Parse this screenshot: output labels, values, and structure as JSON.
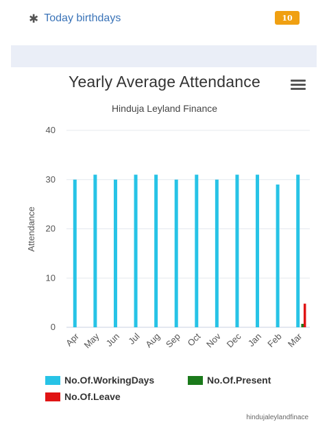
{
  "birthdays": {
    "icon": "asterisk-icon",
    "label": "Today birthdays",
    "count": "10",
    "badge_color": "#f0a012"
  },
  "chart": {
    "title": "Yearly Average Attendance",
    "subtitle": "Hinduja Leyland Finance",
    "menu_icon": "hamburger-menu-icon",
    "credit": "hindujaleylandfinace"
  },
  "chart_data": {
    "type": "bar",
    "title": "Yearly Average Attendance",
    "subtitle": "Hinduja Leyland Finance",
    "xlabel": "",
    "ylabel": "Attendance",
    "ylim": [
      0,
      40
    ],
    "yticks": [
      0,
      10,
      20,
      30,
      40
    ],
    "grid": true,
    "legend_position": "bottom",
    "categories": [
      "Apr",
      "May",
      "Jun",
      "Jul",
      "Aug",
      "Sep",
      "Oct",
      "Nov",
      "Dec",
      "Jan",
      "Feb",
      "Mar"
    ],
    "series": [
      {
        "name": "No.Of.WorkingDays",
        "color": "#27c3e6",
        "values": [
          30,
          31,
          30,
          31,
          31,
          30,
          31,
          30,
          31,
          31,
          29,
          31
        ]
      },
      {
        "name": "No.Of.Present",
        "color": "#1b7a1b",
        "values": [
          0,
          0,
          0,
          0,
          0,
          0,
          0,
          0,
          0,
          0,
          0,
          0.7
        ]
      },
      {
        "name": "No.Of.Leave",
        "color": "#e01414",
        "values": [
          0,
          0,
          0,
          0,
          0,
          0,
          0,
          0,
          0,
          0,
          0,
          4.8
        ]
      }
    ]
  }
}
